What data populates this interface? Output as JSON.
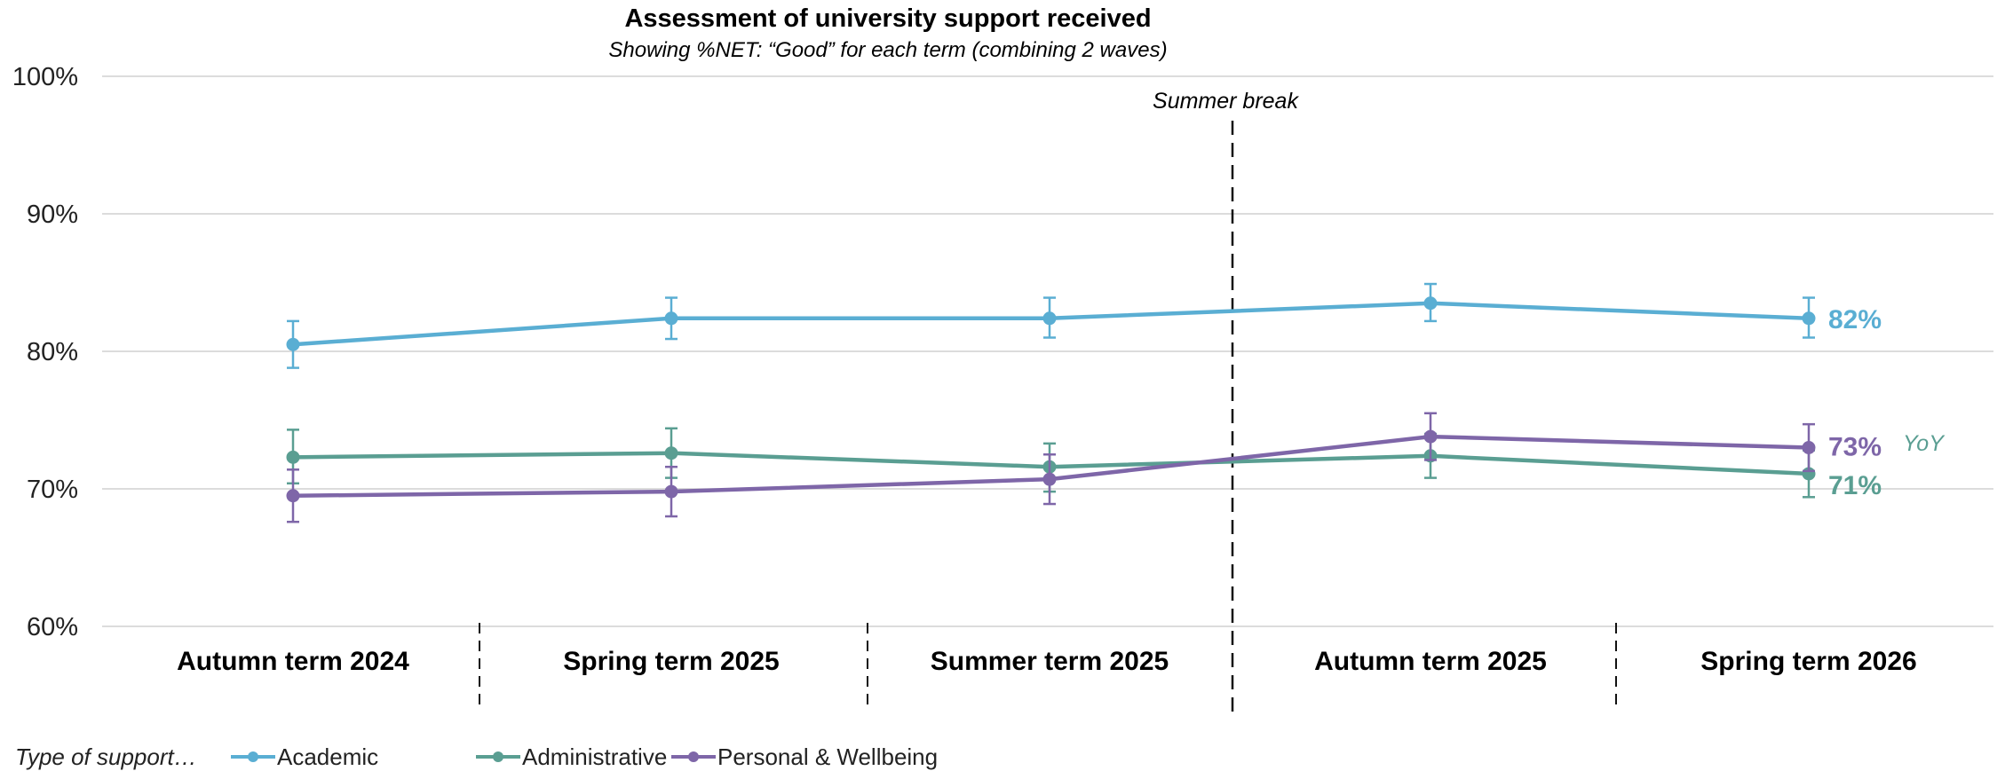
{
  "chart_data": {
    "type": "line",
    "title": "Assessment of university support received",
    "subtitle": "Showing %NET: “Good” for each term (combining 2 waves)",
    "categories": [
      "Autumn term 2024",
      "Spring term 2025",
      "Summer term 2025",
      "Autumn term 2025",
      "Spring term 2026"
    ],
    "ylim": [
      60,
      100
    ],
    "yticks": [
      "60%",
      "70%",
      "80%",
      "90%",
      "100%"
    ],
    "grid": true,
    "break_annotation": "Summer break",
    "yoy_label": "YoY",
    "legend": {
      "title": "Type of support…",
      "placement": "bottom-left"
    },
    "series": [
      {
        "name": "Academic",
        "color": "#5aaed3",
        "values": [
          80.5,
          82.4,
          82.4,
          83.5,
          82.4
        ],
        "err_low": [
          78.8,
          80.9,
          81.0,
          82.2,
          81.0
        ],
        "err_high": [
          82.2,
          83.9,
          83.9,
          84.9,
          83.9
        ],
        "end_label": "82%"
      },
      {
        "name": "Administrative",
        "color": "#5a9e92",
        "values": [
          72.3,
          72.6,
          71.6,
          72.4,
          71.1
        ],
        "err_low": [
          70.4,
          70.8,
          69.8,
          70.8,
          69.4
        ],
        "err_high": [
          74.3,
          74.4,
          73.3,
          74.0,
          72.8
        ],
        "end_label": "71%"
      },
      {
        "name": "Personal & Wellbeing",
        "color": "#7e66a8",
        "values": [
          69.5,
          69.8,
          70.7,
          73.8,
          73.0
        ],
        "err_low": [
          67.6,
          68.0,
          68.9,
          72.1,
          71.3
        ],
        "err_high": [
          71.4,
          71.6,
          72.5,
          75.5,
          74.7
        ],
        "end_label": "73%"
      }
    ]
  }
}
